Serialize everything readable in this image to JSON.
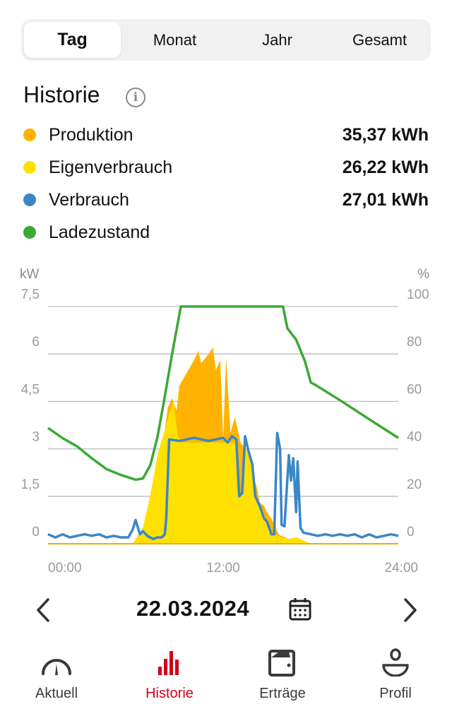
{
  "tabs": [
    {
      "label": "Tag",
      "active": true
    },
    {
      "label": "Monat"
    },
    {
      "label": "Jahr"
    },
    {
      "label": "Gesamt"
    }
  ],
  "section": {
    "title": "Historie",
    "info_icon": "info-icon"
  },
  "legend": [
    {
      "label": "Produktion",
      "value": "35,37 kWh",
      "color": "#FFB300"
    },
    {
      "label": "Eigenverbrauch",
      "value": "26,22 kWh",
      "color": "#FFE100"
    },
    {
      "label": "Verbrauch",
      "value": "27,01 kWh",
      "color": "#3A87C8"
    },
    {
      "label": "Ladezustand",
      "value": "",
      "color": "#3AA935"
    }
  ],
  "chart_data": {
    "type": "area",
    "left_unit": "kW",
    "right_unit": "%",
    "left_ticks": [
      "0",
      "1,5",
      "3",
      "4,5",
      "6",
      "7,5"
    ],
    "right_ticks": [
      "0",
      "20",
      "40",
      "60",
      "80",
      "100"
    ],
    "x_ticks": [
      "00:00",
      "12:00",
      "24:00"
    ],
    "ylim_left": [
      0,
      7.5
    ],
    "ylim_right": [
      0,
      100
    ],
    "xlim_hours": [
      0,
      24
    ],
    "grid": true,
    "series": [
      {
        "name": "Produktion",
        "kind": "area",
        "color": "#FFB300",
        "points": [
          [
            0,
            0
          ],
          [
            5.8,
            0
          ],
          [
            6.5,
            0.5
          ],
          [
            7,
            1.5
          ],
          [
            7.5,
            2.8
          ],
          [
            8,
            3.6
          ],
          [
            8.2,
            4.3
          ],
          [
            8.5,
            4.6
          ],
          [
            8.8,
            4.2
          ],
          [
            9,
            5.0
          ],
          [
            9.5,
            5.4
          ],
          [
            10,
            5.8
          ],
          [
            10.3,
            6.1
          ],
          [
            10.5,
            5.7
          ],
          [
            11,
            6.0
          ],
          [
            11.3,
            6.2
          ],
          [
            11.5,
            5.5
          ],
          [
            11.8,
            5.8
          ],
          [
            12,
            3.3
          ],
          [
            12.2,
            5.9
          ],
          [
            12.5,
            3.5
          ],
          [
            12.8,
            4.0
          ],
          [
            13,
            3.6
          ],
          [
            13.2,
            3.2
          ],
          [
            13.5,
            3.0
          ],
          [
            13.8,
            2.9
          ],
          [
            14,
            2.2
          ],
          [
            14.3,
            1.8
          ],
          [
            14.5,
            1.3
          ],
          [
            14.8,
            1.2
          ],
          [
            15,
            1.0
          ],
          [
            15.3,
            0.8
          ],
          [
            15.5,
            0.6
          ],
          [
            15.8,
            0.3
          ],
          [
            16,
            0.25
          ],
          [
            16.5,
            0.15
          ],
          [
            17,
            0.2
          ],
          [
            17.5,
            0.1
          ],
          [
            18,
            0
          ],
          [
            24,
            0
          ]
        ]
      },
      {
        "name": "Eigenverbrauch",
        "kind": "area",
        "color": "#FFE100",
        "points": [
          [
            0,
            0
          ],
          [
            5.8,
            0
          ],
          [
            6.5,
            0.5
          ],
          [
            7,
            1.5
          ],
          [
            7.5,
            2.8
          ],
          [
            8,
            3.6
          ],
          [
            8.3,
            4.1
          ],
          [
            8.6,
            4.5
          ],
          [
            8.9,
            3.4
          ],
          [
            9.2,
            3.2
          ],
          [
            10,
            3.2
          ],
          [
            11,
            3.2
          ],
          [
            12,
            3.2
          ],
          [
            12.9,
            3.2
          ],
          [
            13.1,
            1.5
          ],
          [
            13.3,
            1.6
          ],
          [
            13.5,
            3.0
          ],
          [
            13.8,
            2.9
          ],
          [
            14,
            2.2
          ],
          [
            14.3,
            1.5
          ],
          [
            14.5,
            1.2
          ],
          [
            14.8,
            0.8
          ],
          [
            15,
            0.7
          ],
          [
            15.3,
            0.3
          ],
          [
            15.5,
            0.3
          ],
          [
            15.8,
            0.25
          ],
          [
            16,
            0.2
          ],
          [
            16.5,
            0.15
          ],
          [
            17,
            0.2
          ],
          [
            17.5,
            0.1
          ],
          [
            18,
            0
          ],
          [
            24,
            0
          ]
        ]
      },
      {
        "name": "Verbrauch",
        "kind": "line",
        "color": "#3A87C8",
        "points": [
          [
            0,
            0.3
          ],
          [
            0.5,
            0.2
          ],
          [
            1,
            0.3
          ],
          [
            1.5,
            0.2
          ],
          [
            2,
            0.25
          ],
          [
            2.5,
            0.3
          ],
          [
            3,
            0.25
          ],
          [
            3.5,
            0.3
          ],
          [
            4,
            0.2
          ],
          [
            4.5,
            0.25
          ],
          [
            5,
            0.2
          ],
          [
            5.5,
            0.2
          ],
          [
            5.8,
            0.45
          ],
          [
            6,
            0.75
          ],
          [
            6.3,
            0.3
          ],
          [
            6.5,
            0.4
          ],
          [
            6.8,
            0.25
          ],
          [
            7.2,
            0.15
          ],
          [
            7.5,
            0.2
          ],
          [
            7.8,
            0.2
          ],
          [
            8,
            0.3
          ],
          [
            8.1,
            0.8
          ],
          [
            8.3,
            3.3
          ],
          [
            9,
            3.25
          ],
          [
            9.5,
            3.3
          ],
          [
            10,
            3.35
          ],
          [
            10.5,
            3.3
          ],
          [
            11,
            3.25
          ],
          [
            11.5,
            3.3
          ],
          [
            12,
            3.35
          ],
          [
            12.3,
            3.2
          ],
          [
            12.6,
            3.4
          ],
          [
            12.9,
            3.3
          ],
          [
            13.1,
            1.5
          ],
          [
            13.3,
            1.6
          ],
          [
            13.5,
            3.4
          ],
          [
            13.7,
            3.0
          ],
          [
            14,
            2.5
          ],
          [
            14.2,
            1.5
          ],
          [
            14.5,
            1.2
          ],
          [
            14.8,
            0.8
          ],
          [
            15,
            0.7
          ],
          [
            15.3,
            0.3
          ],
          [
            15.5,
            0.3
          ],
          [
            15.7,
            3.5
          ],
          [
            15.9,
            3.0
          ],
          [
            16.0,
            0.6
          ],
          [
            16.2,
            0.55
          ],
          [
            16.5,
            2.8
          ],
          [
            16.65,
            2.0
          ],
          [
            16.8,
            2.7
          ],
          [
            17.0,
            1.0
          ],
          [
            17.1,
            2.6
          ],
          [
            17.3,
            0.5
          ],
          [
            17.5,
            0.35
          ],
          [
            18,
            0.3
          ],
          [
            18.5,
            0.25
          ],
          [
            19,
            0.3
          ],
          [
            19.5,
            0.25
          ],
          [
            20,
            0.3
          ],
          [
            20.5,
            0.25
          ],
          [
            21,
            0.3
          ],
          [
            21.5,
            0.2
          ],
          [
            22,
            0.3
          ],
          [
            22.5,
            0.2
          ],
          [
            23,
            0.25
          ],
          [
            23.5,
            0.3
          ],
          [
            24,
            0.25
          ]
        ]
      },
      {
        "name": "Ladezustand",
        "kind": "line",
        "axis": "right",
        "color": "#3AA935",
        "points": [
          [
            0,
            48.8
          ],
          [
            1,
            44.5
          ],
          [
            2,
            41
          ],
          [
            3,
            36
          ],
          [
            4,
            31.5
          ],
          [
            5,
            29
          ],
          [
            6,
            27
          ],
          [
            6.5,
            27.5
          ],
          [
            7,
            33
          ],
          [
            7.5,
            45
          ],
          [
            8,
            62
          ],
          [
            8.5,
            80
          ],
          [
            9.1,
            100
          ],
          [
            16.1,
            100
          ],
          [
            16.4,
            90.8
          ],
          [
            17,
            86
          ],
          [
            17.6,
            77
          ],
          [
            18,
            68
          ],
          [
            18.3,
            67
          ],
          [
            20,
            60.5
          ],
          [
            22,
            52.5
          ],
          [
            24,
            44.6
          ]
        ]
      }
    ]
  },
  "date_nav": {
    "date": "22.03.2024",
    "prev_icon": "chevron-left-icon",
    "next_icon": "chevron-right-icon",
    "calendar_icon": "calendar-icon"
  },
  "nav": [
    {
      "label": "Aktuell",
      "icon": "gauge-icon"
    },
    {
      "label": "Historie",
      "icon": "bar-chart-icon",
      "active": true
    },
    {
      "label": "Erträge",
      "icon": "wallet-icon"
    },
    {
      "label": "Profil",
      "icon": "profile-icon"
    }
  ],
  "accent": "#D0021B"
}
